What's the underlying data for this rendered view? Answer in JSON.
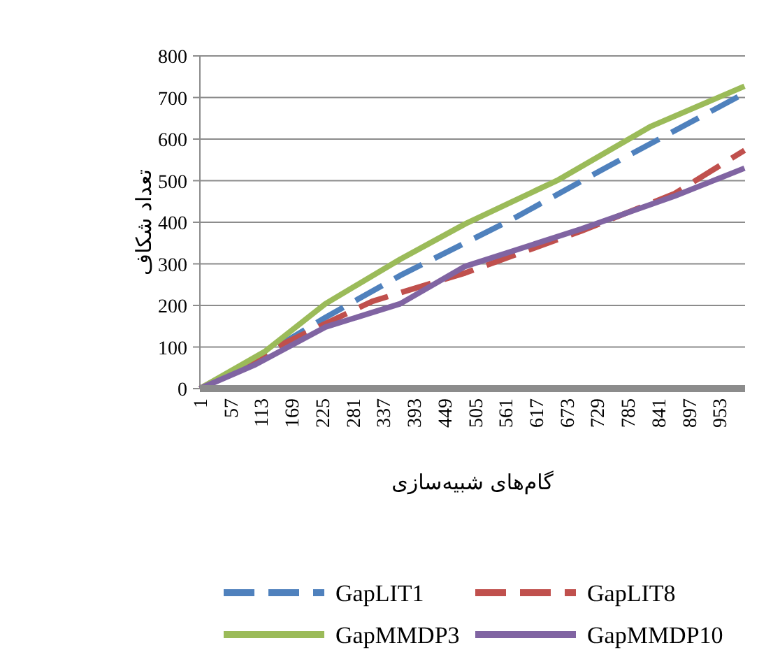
{
  "chart_data": {
    "type": "line",
    "xlabel": "گام‌های شبیه‌سازی",
    "ylabel": "تعداد شکاف",
    "xlim": [
      1,
      1000
    ],
    "xticks": [
      1,
      57,
      113,
      169,
      225,
      281,
      337,
      393,
      449,
      505,
      561,
      617,
      673,
      729,
      785,
      841,
      897,
      953
    ],
    "ylim": [
      0,
      800
    ],
    "yticks": [
      0,
      100,
      200,
      300,
      400,
      500,
      600,
      700,
      800
    ],
    "grid": "y",
    "legend": "bottom",
    "series": [
      {
        "name": "GapLIT1",
        "color": "#4f81bd",
        "line_style": "dashed",
        "x": [
          1,
          103,
          231,
          368,
          573,
          743,
          999
        ],
        "values": [
          0,
          70,
          171,
          272,
          407,
          530,
          710
        ]
      },
      {
        "name": "GapLIT8",
        "color": "#c0504d",
        "line_style": "dashed",
        "x": [
          1,
          146,
          317,
          487,
          700,
          871,
          999
        ],
        "values": [
          0,
          103,
          210,
          278,
          379,
          469,
          573
        ]
      },
      {
        "name": "GapMMDP3",
        "color": "#9bbb59",
        "line_style": "solid",
        "x": [
          1,
          121,
          231,
          368,
          487,
          658,
          828,
          999
        ],
        "values": [
          0,
          90,
          204,
          311,
          396,
          502,
          631,
          727
        ]
      },
      {
        "name": "GapMMDP10",
        "color": "#8064a2",
        "line_style": "solid",
        "x": [
          1,
          103,
          231,
          368,
          487,
          700,
          871,
          999
        ],
        "values": [
          0,
          58,
          148,
          204,
          294,
          384,
          463,
          530
        ]
      }
    ]
  }
}
